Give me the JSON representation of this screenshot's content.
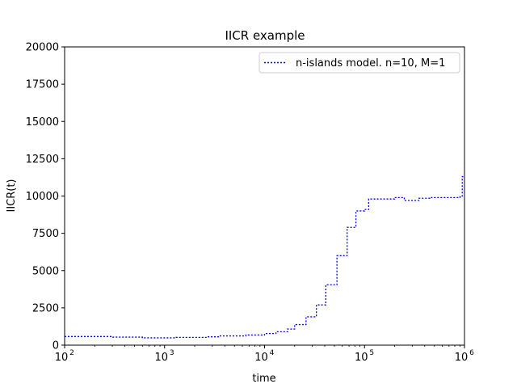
{
  "chart_data": {
    "type": "line",
    "title": "IICR example",
    "xlabel": "time",
    "ylabel": "IICR(t)",
    "xscale": "log",
    "xlim": [
      100,
      1000000
    ],
    "ylim": [
      0,
      20000
    ],
    "yticks": [
      0,
      2500,
      5000,
      7500,
      10000,
      12500,
      15000,
      17500,
      20000
    ],
    "xticks": [
      {
        "value": 100,
        "base": "10",
        "exp": "2"
      },
      {
        "value": 1000,
        "base": "10",
        "exp": "3"
      },
      {
        "value": 10000,
        "base": "10",
        "exp": "4"
      },
      {
        "value": 100000,
        "base": "10",
        "exp": "5"
      },
      {
        "value": 1000000,
        "base": "10",
        "exp": "6"
      }
    ],
    "grid": false,
    "legend": {
      "placement": "top-right"
    },
    "series": [
      {
        "name": "n-islands model. n=10, M=1",
        "color": "#0000ff",
        "linestyle": "dotted",
        "step": "post",
        "x": [
          100,
          300,
          600,
          1300,
          2600,
          3600,
          6500,
          10000,
          13000,
          17000,
          20000,
          26000,
          33000,
          41000,
          53000,
          67000,
          82000,
          100000,
          110000,
          200000,
          250000,
          350000,
          450000,
          900000,
          950000
        ],
        "y": [
          580,
          540,
          490,
          520,
          560,
          620,
          680,
          780,
          900,
          1080,
          1380,
          1900,
          2700,
          4050,
          6000,
          7900,
          9000,
          9100,
          9800,
          9900,
          9700,
          9850,
          9900,
          9950,
          11300
        ]
      }
    ]
  }
}
